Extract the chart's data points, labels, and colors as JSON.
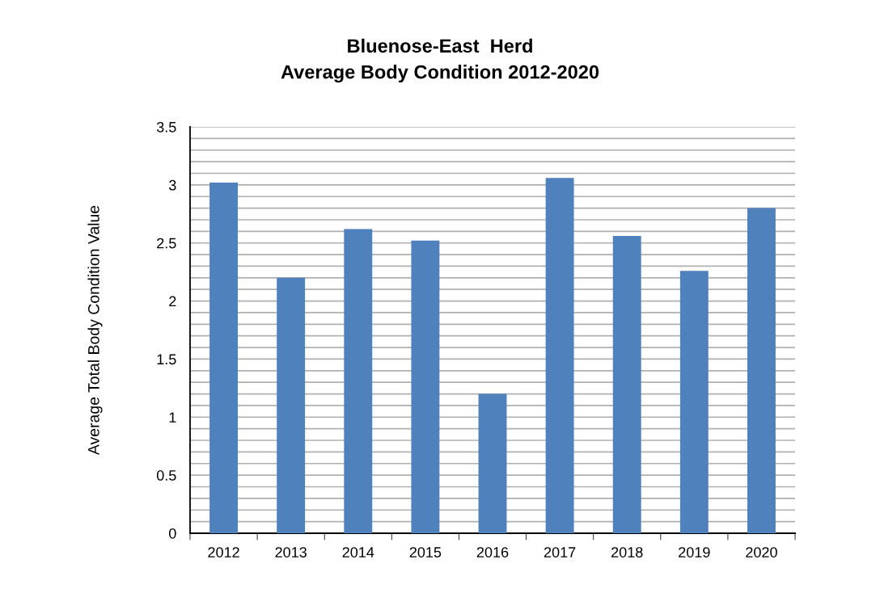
{
  "chart_data": {
    "type": "bar",
    "title": "Bluenose-East  Herd\nAverage Body Condition 2012-2020",
    "ylabel": "Average Total Body Condition Value",
    "categories": [
      "2012",
      "2013",
      "2014",
      "2015",
      "2016",
      "2017",
      "2018",
      "2019",
      "2020"
    ],
    "values": [
      3.02,
      2.2,
      2.62,
      2.52,
      1.2,
      3.06,
      2.56,
      2.26,
      2.8
    ],
    "color": "#4f81bd",
    "ylim": [
      0,
      3.5
    ],
    "yticks": [
      0,
      {
        "value": 0.1,
        "label": null
      },
      {
        "value": 0.2,
        "label": null
      },
      {
        "value": 0.3,
        "label": null
      },
      {
        "value": 0.4,
        "label": null
      },
      0.5,
      {
        "value": 0.6,
        "label": null
      },
      {
        "value": 0.7,
        "label": null
      },
      {
        "value": 0.8,
        "label": null
      },
      {
        "value": 0.9,
        "label": null
      },
      1,
      {
        "value": 1.1,
        "label": null
      },
      {
        "value": 1.2,
        "label": null
      },
      {
        "value": 1.3,
        "label": null
      },
      {
        "value": 1.4,
        "label": null
      },
      1.5,
      {
        "value": 1.6,
        "label": null
      },
      {
        "value": 1.7,
        "label": null
      },
      {
        "value": 1.8,
        "label": null
      },
      {
        "value": 1.9,
        "label": null
      },
      2,
      {
        "value": 2.1,
        "label": null
      },
      {
        "value": 2.2,
        "label": null
      },
      {
        "value": 2.3,
        "label": null
      },
      {
        "value": 2.4,
        "label": null
      },
      2.5,
      {
        "value": 2.6,
        "label": null
      },
      {
        "value": 2.7,
        "label": null
      },
      {
        "value": 2.8,
        "label": null
      },
      {
        "value": 2.9,
        "label": null
      },
      3,
      {
        "value": 3.1,
        "label": null
      },
      {
        "value": 3.2,
        "label": null
      },
      {
        "value": 3.3,
        "label": null
      },
      {
        "value": 3.4,
        "label": null
      },
      3.5
    ],
    "grid": "y",
    "legend": false
  }
}
